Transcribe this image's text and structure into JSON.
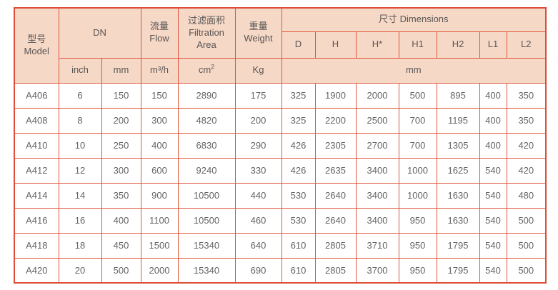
{
  "colors": {
    "border_strong": "#dc4e38",
    "border_cell": "#e0553c",
    "border_row_divider": "#eea091",
    "header_bg": "#f6d8c7",
    "header_text": "#585553",
    "data_text": "#666463",
    "data_bg": "#ffffff"
  },
  "table": {
    "headers": {
      "model_zh": "型号",
      "model_en": "Model",
      "dn": "DN",
      "flow_zh": "流量",
      "flow_en": "Flow",
      "filtration_zh": "过滤面积",
      "filtration_en_line1": "Filtration",
      "filtration_en_line2": "Area",
      "weight_zh": "重量",
      "weight_en": "Weight",
      "dimensions": "尺寸 Dimensions",
      "dim_cols": [
        "D",
        "H",
        "H*",
        "H1",
        "H2",
        "L1",
        "L2"
      ]
    },
    "units": {
      "inch": "inch",
      "mm": "mm",
      "flow": "m³/h",
      "area_base": "cm",
      "area_exp": "2",
      "weight": "Kg",
      "dims": "mm"
    },
    "rows": [
      {
        "model": "A406",
        "inch": "6",
        "mm": "150",
        "flow": "150",
        "area": "2890",
        "weight": "175",
        "dims": [
          "325",
          "1900",
          "2000",
          "500",
          "895",
          "400",
          "350"
        ]
      },
      {
        "model": "A408",
        "inch": "8",
        "mm": "200",
        "flow": "300",
        "area": "4820",
        "weight": "200",
        "dims": [
          "325",
          "2200",
          "2500",
          "700",
          "1195",
          "400",
          "350"
        ]
      },
      {
        "model": "A410",
        "inch": "10",
        "mm": "250",
        "flow": "400",
        "area": "6830",
        "weight": "290",
        "dims": [
          "426",
          "2305",
          "2700",
          "700",
          "1305",
          "400",
          "420"
        ]
      },
      {
        "model": "A412",
        "inch": "12",
        "mm": "300",
        "flow": "600",
        "area": "9240",
        "weight": "330",
        "dims": [
          "426",
          "2635",
          "3400",
          "1000",
          "1625",
          "540",
          "420"
        ]
      },
      {
        "model": "A414",
        "inch": "14",
        "mm": "350",
        "flow": "900",
        "area": "10500",
        "weight": "440",
        "dims": [
          "530",
          "2640",
          "3400",
          "1000",
          "1630",
          "540",
          "480"
        ]
      },
      {
        "model": "A416",
        "inch": "16",
        "mm": "400",
        "flow": "1100",
        "area": "10500",
        "weight": "460",
        "dims": [
          "530",
          "2640",
          "3400",
          "950",
          "1630",
          "540",
          "500"
        ]
      },
      {
        "model": "A418",
        "inch": "18",
        "mm": "450",
        "flow": "1500",
        "area": "15340",
        "weight": "640",
        "dims": [
          "610",
          "2805",
          "3710",
          "950",
          "1795",
          "540",
          "500"
        ]
      },
      {
        "model": "A420",
        "inch": "20",
        "mm": "500",
        "flow": "2000",
        "area": "15340",
        "weight": "690",
        "dims": [
          "610",
          "2805",
          "3700",
          "950",
          "1795",
          "540",
          "500"
        ]
      }
    ]
  }
}
